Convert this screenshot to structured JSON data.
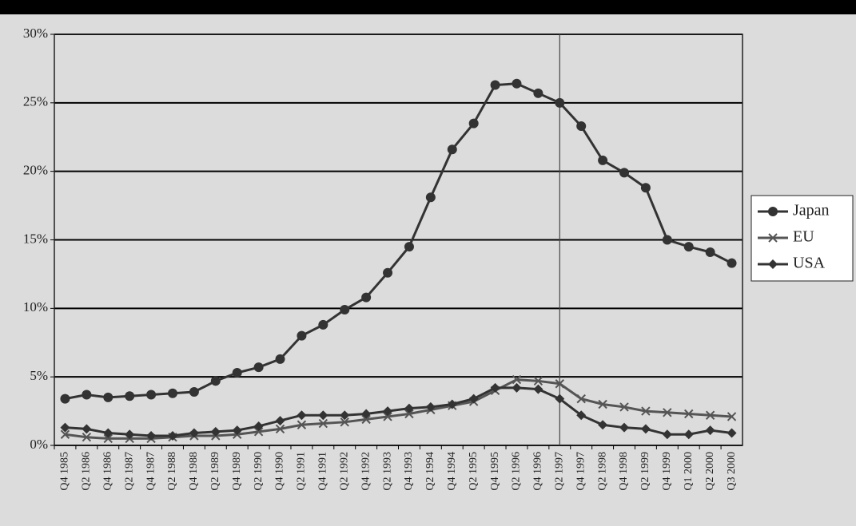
{
  "chart_data": {
    "type": "line",
    "categories": [
      "Q4 1985",
      "Q2 1986",
      "Q4 1986",
      "Q2 1987",
      "Q4 1987",
      "Q2 1988",
      "Q4 1988",
      "Q2 1989",
      "Q4 1989",
      "Q2 1990",
      "Q4 1990",
      "Q2 1991",
      "Q4 1991",
      "Q2 1992",
      "Q4 1992",
      "Q2 1993",
      "Q4 1993",
      "Q2 1994",
      "Q4 1994",
      "Q2 1995",
      "Q4 1995",
      "Q2 1996",
      "Q4 1996",
      "Q2 1997",
      "Q4 1997",
      "Q2 1998",
      "Q4 1998",
      "Q2 1999",
      "Q4 1999",
      "Q1 2000",
      "Q2 2000",
      "Q3 2000"
    ],
    "series": [
      {
        "name": "Japan",
        "color": "#333333",
        "marker": "circle",
        "values": [
          3.4,
          3.7,
          3.5,
          3.6,
          3.7,
          3.8,
          3.9,
          4.7,
          5.3,
          5.7,
          6.3,
          8.0,
          8.8,
          9.9,
          10.8,
          12.6,
          14.5,
          18.1,
          21.6,
          23.5,
          26.3,
          26.4,
          25.7,
          25.0,
          23.3,
          20.8,
          19.9,
          18.8,
          15.0,
          14.5,
          14.1,
          13.3
        ]
      },
      {
        "name": "EU",
        "color": "#555555",
        "marker": "x",
        "values": [
          0.8,
          0.6,
          0.5,
          0.5,
          0.5,
          0.6,
          0.7,
          0.7,
          0.8,
          1.0,
          1.2,
          1.5,
          1.6,
          1.7,
          1.9,
          2.1,
          2.3,
          2.6,
          2.9,
          3.2,
          4.0,
          4.8,
          4.7,
          4.5,
          3.4,
          3.0,
          2.8,
          2.5,
          2.4,
          2.3,
          2.2,
          2.1
        ]
      },
      {
        "name": "USA",
        "color": "#333333",
        "marker": "diamond",
        "values": [
          1.3,
          1.2,
          0.9,
          0.8,
          0.7,
          0.7,
          0.9,
          1.0,
          1.1,
          1.4,
          1.8,
          2.2,
          2.2,
          2.2,
          2.3,
          2.5,
          2.7,
          2.8,
          3.0,
          3.4,
          4.2,
          4.2,
          4.1,
          3.4,
          2.2,
          1.5,
          1.3,
          1.2,
          0.8,
          0.8,
          1.1,
          0.9
        ]
      }
    ],
    "ylim": [
      0,
      30
    ],
    "yticks": [
      {
        "value": 0,
        "label": "0%"
      },
      {
        "value": 5,
        "label": "5%"
      },
      {
        "value": 10,
        "label": "10%"
      },
      {
        "value": 15,
        "label": "15%"
      },
      {
        "value": 20,
        "label": "20%"
      },
      {
        "value": 25,
        "label": "25%"
      },
      {
        "value": 30,
        "label": "30%"
      }
    ],
    "grid": true,
    "vline": "Q2 1997",
    "legend": "right"
  }
}
